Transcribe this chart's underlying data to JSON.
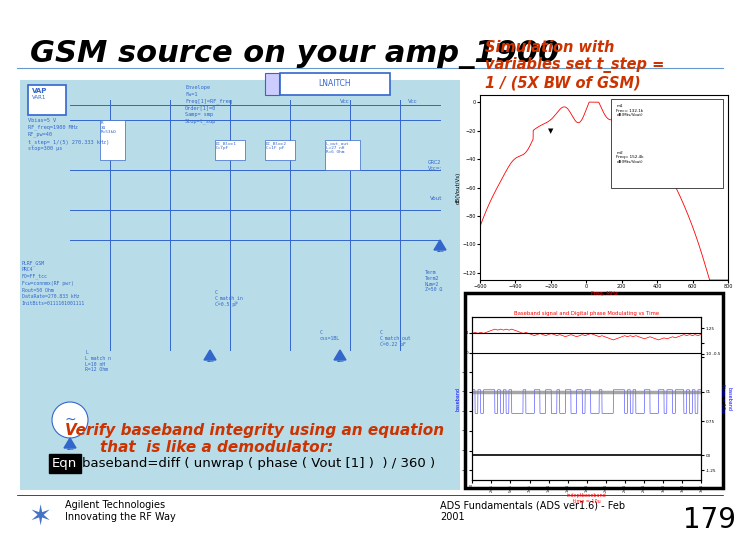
{
  "title": "GSM source on your amp_1900",
  "title_fontsize": 22,
  "title_style": "italic",
  "title_weight": "bold",
  "title_color": "black",
  "slide_bg": "#ffffff",
  "circuit_bg": "#b8dde8",
  "annotation_text": "Simulation with\nvariables set t_step =\n1 / (5X BW of GSM)",
  "annotation_color": "#cc3300",
  "annotation_fontsize": 10.5,
  "annotation_style": "italic",
  "annotation_weight": "bold",
  "verify_line1": "Verify baseband integrity using an equation",
  "verify_line2": "that  is like a demodulator:",
  "verify_color": "#cc3300",
  "verify_fontsize": 11,
  "verify_style": "italic",
  "verify_weight": "bold",
  "eqn_label": "Eqn",
  "eqn_text": "baseband=diff ( unwrap ( phase ( Vout [1] )  ) / 360 )",
  "eqn_fontsize": 9.5,
  "footer_left_line1": "Agilent Technologies",
  "footer_left_line2": "Innovating the RF Way",
  "footer_center": "ADS Fundamentals (ADS ver1.6) - Feb\n2001",
  "footer_page": "179",
  "footer_fontsize": 7,
  "footer_page_fontsize": 20
}
